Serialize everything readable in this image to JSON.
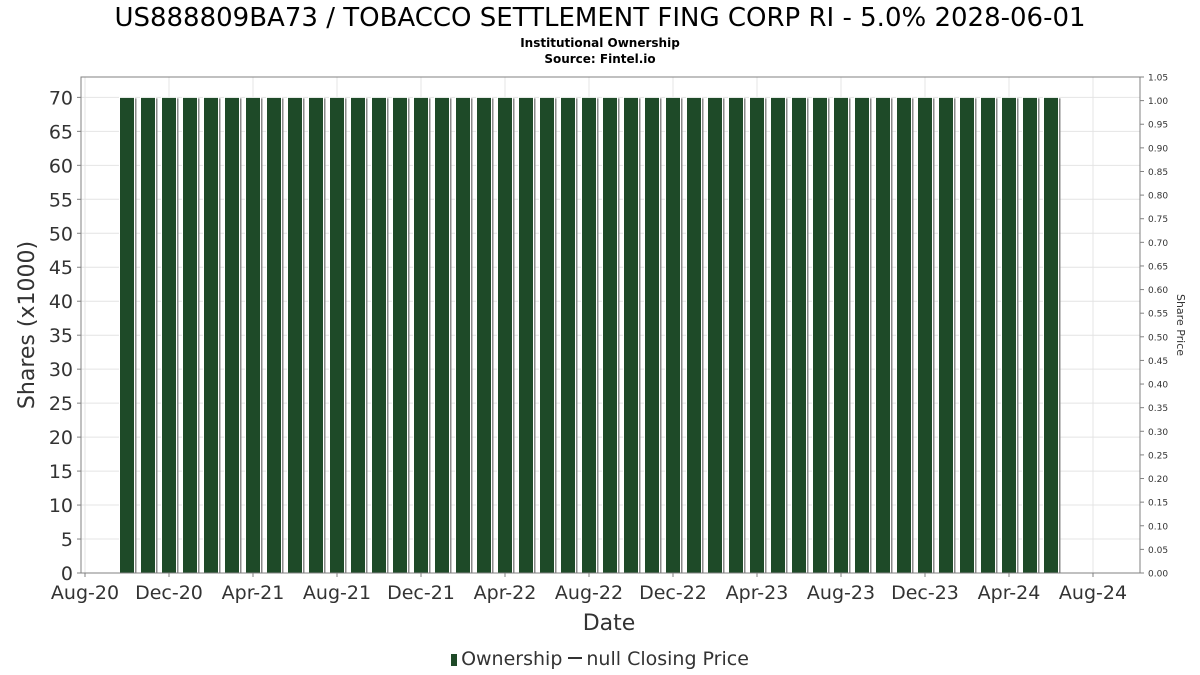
{
  "title": "US888809BA73 / TOBACCO SETTLEMENT FING CORP RI - 5.0% 2028-06-01",
  "subtitle": "Institutional Ownership",
  "source": "Source: Fintel.io",
  "legend": {
    "ownership_label": "Ownership",
    "price_label": "null Closing Price"
  },
  "colors": {
    "bar_fill": "#1e4a28",
    "bar_shadow": "#8a8a8a",
    "grid": "#e4e4e4",
    "axis": "#808080"
  },
  "chart_data": {
    "type": "bar",
    "title": "US888809BA73 / TOBACCO SETTLEMENT FING CORP RI - 5.0% 2028-06-01",
    "subtitle": "Institutional Ownership",
    "xlabel": "Date",
    "ylabel": "Shares (x1000)",
    "y2label": "Share Price",
    "x_ticks": [
      "Aug-20",
      "Dec-20",
      "Apr-21",
      "Aug-21",
      "Dec-21",
      "Apr-22",
      "Aug-22",
      "Dec-22",
      "Apr-23",
      "Aug-23",
      "Dec-23",
      "Apr-24",
      "Aug-24"
    ],
    "ylim": [
      0,
      73
    ],
    "y_ticks": [
      0,
      5,
      10,
      15,
      20,
      25,
      30,
      35,
      40,
      45,
      50,
      55,
      60,
      65,
      70
    ],
    "y2lim": [
      0,
      1.05
    ],
    "y2_ticks": [
      "0.00",
      "0.05",
      "0.10",
      "0.15",
      "0.20",
      "0.25",
      "0.30",
      "0.35",
      "0.40",
      "0.45",
      "0.50",
      "0.55",
      "0.60",
      "0.65",
      "0.70",
      "0.75",
      "0.80",
      "0.85",
      "0.90",
      "0.95",
      "1.00",
      "1.05"
    ],
    "grid": true,
    "legend_position": "bottom",
    "series": [
      {
        "name": "Ownership",
        "start": "2020-10",
        "end": "2024-06",
        "frequency": "monthly",
        "values": [
          70,
          70,
          70,
          70,
          70,
          70,
          70,
          70,
          70,
          70,
          70,
          70,
          70,
          70,
          70,
          70,
          70,
          70,
          70,
          70,
          70,
          70,
          70,
          70,
          70,
          70,
          70,
          70,
          70,
          70,
          70,
          70,
          70,
          70,
          70,
          70,
          70,
          70,
          70,
          70,
          70,
          70,
          70,
          70,
          70
        ]
      },
      {
        "name": "null Closing Price",
        "values": []
      }
    ]
  }
}
